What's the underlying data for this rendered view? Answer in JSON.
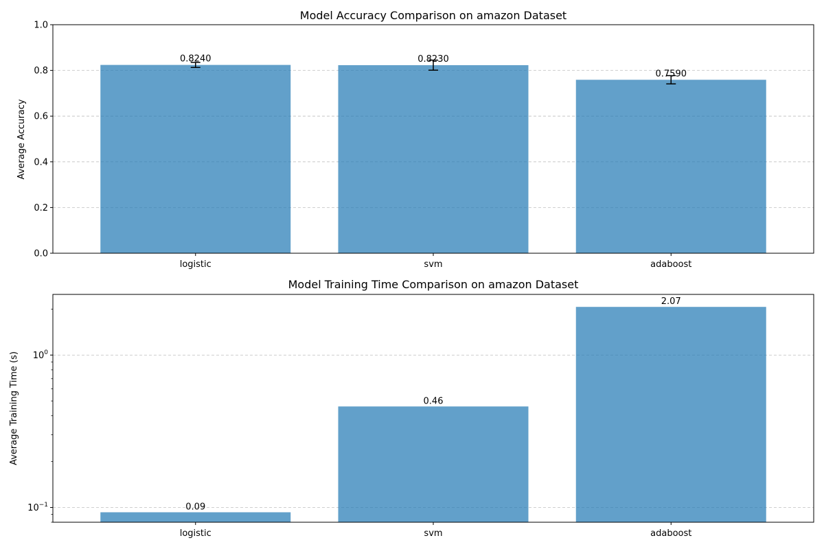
{
  "chart_data": [
    {
      "type": "bar",
      "title": "Model Accuracy Comparison on amazon Dataset",
      "xlabel": "",
      "ylabel": "Average Accuracy",
      "categories": [
        "logistic",
        "svm",
        "adaboost"
      ],
      "values": [
        0.824,
        0.823,
        0.759
      ],
      "errors": [
        0.011,
        0.022,
        0.018
      ],
      "value_labels": [
        "0.8240",
        "0.8230",
        "0.7590"
      ],
      "ylim": [
        0,
        1.0
      ],
      "yscale": "linear",
      "yticks": [
        0.0,
        0.2,
        0.4,
        0.6,
        0.8,
        1.0
      ],
      "ytick_labels": [
        "0.0",
        "0.2",
        "0.4",
        "0.6",
        "0.8",
        "1.0"
      ],
      "grid": "y-dashed",
      "bar_color": "#1f77b4"
    },
    {
      "type": "bar",
      "title": "Model Training Time Comparison on amazon Dataset",
      "xlabel": "",
      "ylabel": "Average Training Time (s)",
      "categories": [
        "logistic",
        "svm",
        "adaboost"
      ],
      "values": [
        0.093,
        0.46,
        2.07
      ],
      "value_labels": [
        "0.09",
        "0.46",
        "2.07"
      ],
      "ylim": [
        0.08,
        2.5
      ],
      "yscale": "log",
      "yticks": [
        0.1,
        1.0
      ],
      "ytick_labels": [
        {
          "base": "10",
          "exp": "−1"
        },
        {
          "base": "10",
          "exp": "0"
        }
      ],
      "grid": "y-dashed",
      "bar_color": "#1f77b4"
    }
  ]
}
